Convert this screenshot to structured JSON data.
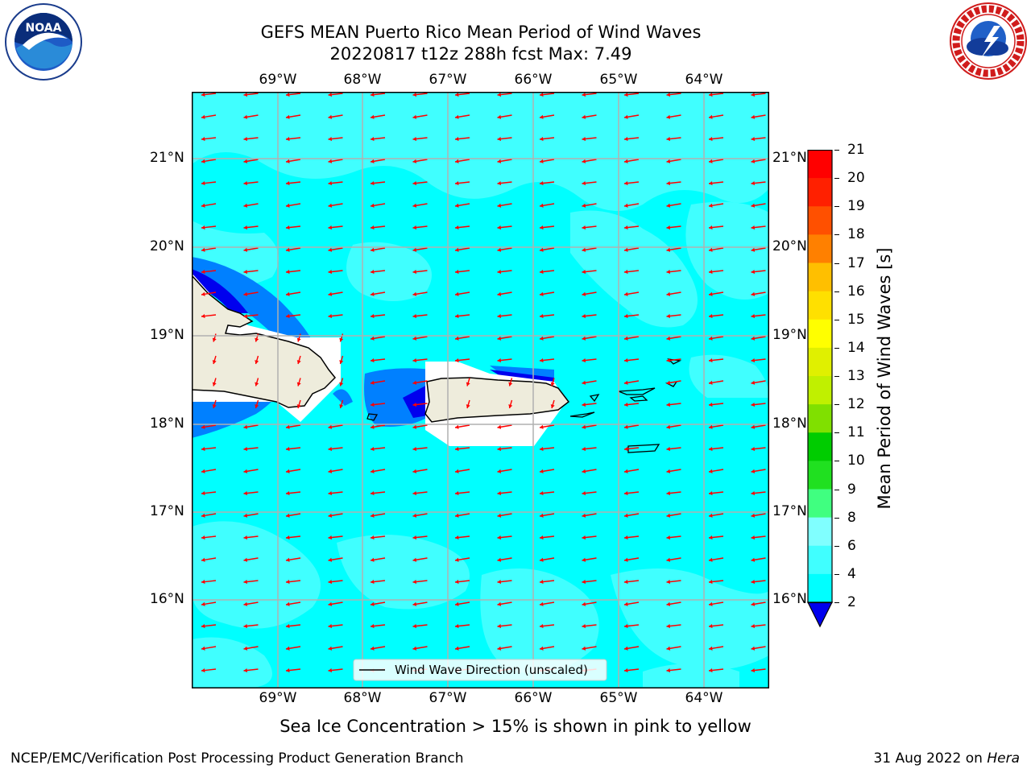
{
  "header": {
    "title_line1": "GEFS MEAN Puerto Rico Mean Period of Wind Waves",
    "title_line2": "20220817 t12z 288h fcst   Max: 7.49"
  },
  "logos": {
    "left": {
      "icon": "noaa-logo",
      "text": "NOAA",
      "ring_text": "NATIONAL OCEANIC AND ATMOSPHERIC ADMINISTRATION · U.S. DEPARTMENT OF COMMERCE"
    },
    "right": {
      "icon": "nws-logo",
      "ring_text": "NATIONAL WEATHER SERVICE"
    }
  },
  "map": {
    "lon_labels": [
      "69°W",
      "68°W",
      "67°W",
      "66°W",
      "65°W",
      "64°W"
    ],
    "lat_labels": [
      "21°N",
      "20°N",
      "19°N",
      "18°N",
      "17°N",
      "16°N"
    ],
    "legend_label": "Wind Wave Direction (unscaled)",
    "arrow_color": "#ff0000",
    "land_color": "#eeecdc"
  },
  "colorbar": {
    "label": "Mean Period of Wind Waves [s]",
    "ticks": [
      "2",
      "4",
      "6",
      "8",
      "9",
      "10",
      "11",
      "12",
      "13",
      "14",
      "15",
      "16",
      "17",
      "18",
      "19",
      "20",
      "21"
    ],
    "colors": [
      "#0000ff",
      "#0080ff",
      "#00ffff",
      "#40ffff",
      "#80ffff",
      "#40ff80",
      "#20e020",
      "#00cc00",
      "#80e000",
      "#c0f000",
      "#e0f000",
      "#ffff00",
      "#ffe000",
      "#ffbf00",
      "#ff8000",
      "#ff5000",
      "#ff2000",
      "#ff0000"
    ],
    "under_color": "#0000ee"
  },
  "footer": {
    "note": "Sea Ice Concentration > 15% is shown in pink to yellow",
    "left": "NCEP/EMC/Verification Post Processing Product Generation Branch",
    "date": "31 Aug 2022 on ",
    "host": "Hera"
  }
}
